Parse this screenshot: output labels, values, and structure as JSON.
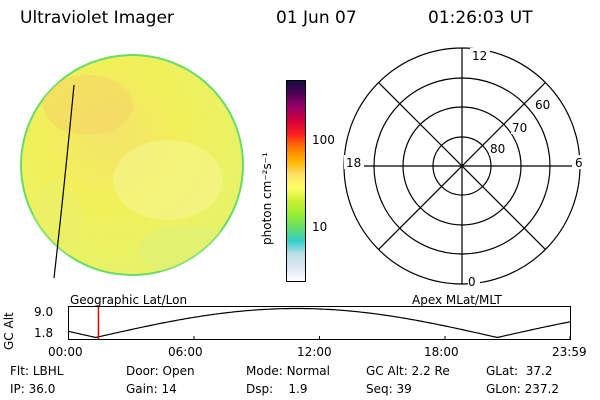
{
  "header": {
    "instrument": "Ultraviolet Imager",
    "date": "01 Jun 07",
    "time": "01:26:03 UT"
  },
  "colorbar": {
    "unit_label": "photon cm⁻²s⁻¹",
    "tick_labels": [
      "100",
      "10"
    ],
    "ticks": [
      100,
      10
    ],
    "range": [
      2.5,
      500
    ],
    "scale": "log",
    "colors": [
      "#ffffff",
      "#dde6f0",
      "#bfe0e6",
      "#33cccc",
      "#66dd66",
      "#99ee33",
      "#ccee33",
      "#ffff66",
      "#ffe066",
      "#ffb300",
      "#ff7a00",
      "#ff2020",
      "#d4003a",
      "#990066",
      "#550055",
      "#101040"
    ]
  },
  "image_panel": {
    "label": "Geographic Lat/Lon",
    "disk_color": "#f2f05a"
  },
  "polar_panel": {
    "label": "Apex MLat/MLT",
    "mlt_labels": {
      "top": "12",
      "left": "18",
      "right": "6",
      "bottom": "0"
    },
    "lat_labels": [
      "60",
      "70",
      "80"
    ],
    "lat_rings": [
      60,
      70,
      80
    ]
  },
  "orbit_plot": {
    "ylabel": "GC Alt",
    "yticks": [
      "9.0",
      "1.8"
    ],
    "ylim": [
      1.8,
      9.0
    ],
    "xticks": [
      "00:00",
      "06:00",
      "12:00",
      "18:00",
      "23:59"
    ],
    "current_time_hours": 1.434,
    "marker_color": "#dd0000"
  },
  "info": {
    "row1": [
      {
        "key": "Flt:",
        "value": "LBHL"
      },
      {
        "key": "Door:",
        "value": "Open"
      },
      {
        "key": "Mode:",
        "value": "Normal"
      },
      {
        "key": "GC Alt:",
        "value": "2.2 Re"
      },
      {
        "key": "GLat:",
        "value": "37.2"
      }
    ],
    "row2": [
      {
        "key": "IP:",
        "value": "36.0"
      },
      {
        "key": "Gain:",
        "value": "14"
      },
      {
        "key": "Dsp:",
        "value": "1.9"
      },
      {
        "key": "Seq:",
        "value": "39"
      },
      {
        "key": "GLon:",
        "value": "237.2"
      }
    ]
  }
}
